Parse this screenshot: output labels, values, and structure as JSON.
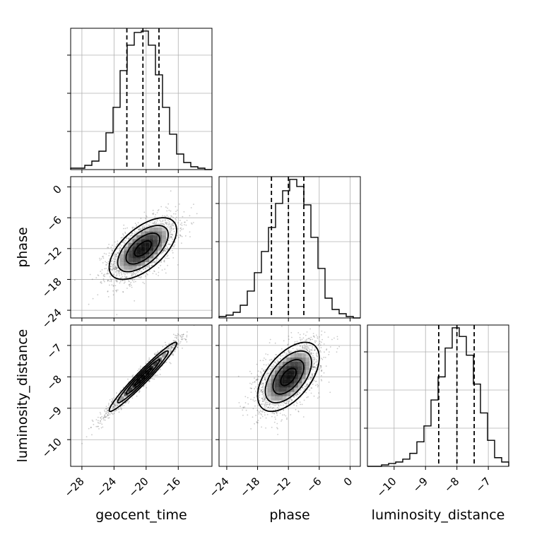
{
  "chart_data": {
    "type": "corner",
    "parameters": [
      "geocent_time",
      "phase",
      "luminosity_distance"
    ],
    "ranges": {
      "geocent_time": [
        -29.4,
        -11.8
      ],
      "phase": [
        -25.5,
        2.0
      ],
      "luminosity_distance": [
        -10.85,
        -6.35
      ]
    },
    "ticks": {
      "geocent_time": [
        -28,
        -24,
        -20,
        -16
      ],
      "phase": [
        -24,
        -18,
        -12,
        -6,
        0
      ],
      "luminosity_distance": [
        -10,
        -9,
        -8,
        -7
      ]
    },
    "tick_labels": {
      "geocent_time": [
        "−28",
        "−24",
        "−20",
        "−16"
      ],
      "phase": [
        "−24",
        "−18",
        "−12",
        "−6",
        "0"
      ],
      "luminosity_distance": [
        "−10",
        "−9",
        "−8",
        "−7"
      ]
    },
    "quantiles": {
      "geocent_time": [
        -22.4,
        -20.4,
        -18.4
      ],
      "phase": [
        -15.3,
        -12.0,
        -9.0
      ],
      "luminosity_distance": [
        -8.58,
        -8.0,
        -7.45
      ]
    },
    "histograms": {
      "geocent_time": {
        "edges": [
          -29.4,
          -28.52,
          -27.64,
          -26.76,
          -25.88,
          -25.0,
          -24.12,
          -23.24,
          -22.36,
          -21.48,
          -20.6,
          -19.72,
          -18.84,
          -17.96,
          -17.08,
          -16.2,
          -15.32,
          -14.44,
          -13.56,
          -12.68,
          -11.8
        ],
        "counts": [
          0.01,
          0.01,
          0.03,
          0.06,
          0.13,
          0.26,
          0.44,
          0.7,
          0.88,
          0.97,
          0.98,
          0.88,
          0.67,
          0.44,
          0.25,
          0.11,
          0.05,
          0.02,
          0.01,
          0.0
        ]
      },
      "phase": {
        "edges": [
          -25.5,
          -24.125,
          -22.75,
          -21.375,
          -20.0,
          -18.625,
          -17.25,
          -15.875,
          -14.5,
          -13.125,
          -11.75,
          -10.375,
          -9.0,
          -7.625,
          -6.25,
          -4.875,
          -3.5,
          -2.125,
          -0.75,
          0.625,
          2.0
        ],
        "counts": [
          0.01,
          0.02,
          0.04,
          0.09,
          0.19,
          0.32,
          0.47,
          0.64,
          0.81,
          0.9,
          0.98,
          0.93,
          0.8,
          0.57,
          0.35,
          0.14,
          0.06,
          0.03,
          0.01,
          0.0
        ]
      },
      "luminosity_distance": {
        "edges": [
          -10.85,
          -10.625,
          -10.4,
          -10.175,
          -9.95,
          -9.725,
          -9.5,
          -9.275,
          -9.05,
          -8.825,
          -8.6,
          -8.375,
          -8.15,
          -7.925,
          -7.7,
          -7.475,
          -7.25,
          -7.025,
          -6.8,
          -6.575,
          -6.35
        ],
        "counts": [
          0.0,
          0.0,
          0.01,
          0.02,
          0.03,
          0.05,
          0.09,
          0.17,
          0.28,
          0.46,
          0.62,
          0.82,
          0.96,
          0.9,
          0.77,
          0.57,
          0.37,
          0.18,
          0.06,
          0.03
        ]
      }
    },
    "joint": {
      "phase|geocent_time": {
        "mean": [
          -20.4,
          -12.0
        ],
        "sd": [
          2.1,
          3.0
        ],
        "corr": 0.6
      },
      "luminosity_distance|geocent_time": {
        "mean": [
          -20.4,
          -8.0
        ],
        "sd": [
          2.1,
          0.55
        ],
        "corr": 0.97
      },
      "luminosity_distance|phase": {
        "mean": [
          -12.0,
          -8.0
        ],
        "sd": [
          3.0,
          0.55
        ],
        "corr": 0.55
      }
    },
    "contour_levels": [
      0.5,
      1.0,
      1.5,
      2.0
    ],
    "grid": true,
    "colors": {
      "line": "#000000",
      "grid": "#b0b0b0",
      "scatter": "#666666"
    }
  }
}
